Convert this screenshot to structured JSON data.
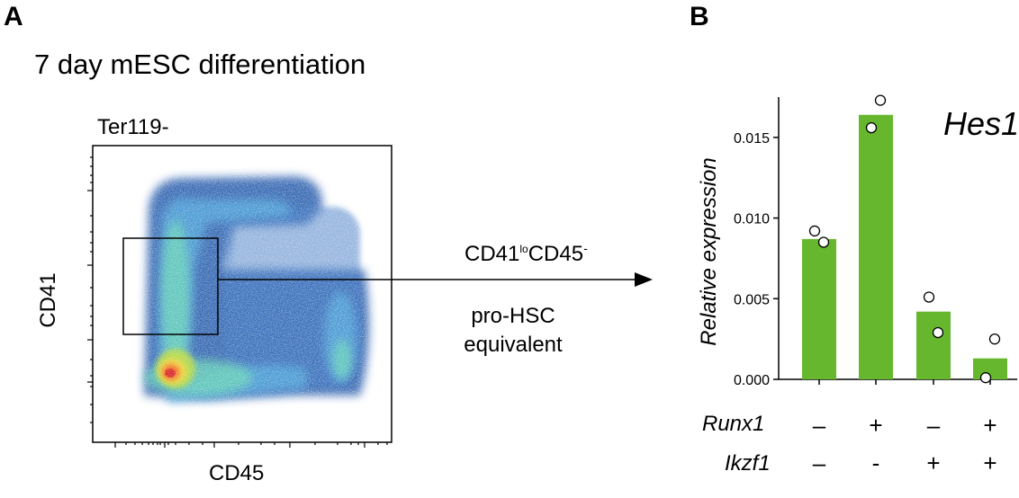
{
  "panels": {
    "a_letter": "A",
    "b_letter": "B"
  },
  "panel_a": {
    "title": "7 day mESC differentiation",
    "gate_label": "Ter119-",
    "xlabel": "CD45",
    "ylabel": "CD41",
    "population": {
      "cd41": "CD41",
      "lo": "lo",
      "cd45": "CD45",
      "minus": "-"
    },
    "description_line1": "pro-HSC",
    "description_line2": "equivalent"
  },
  "chart_data": {
    "type": "bar",
    "title": "Hes1",
    "xlabel": "",
    "ylabel": "Relative expression",
    "ylim": [
      0,
      0.0175
    ],
    "yticks": [
      "0.000",
      "0.005",
      "0.010",
      "0.015"
    ],
    "categories": [
      "Runx1- Ikzf1-",
      "Runx1+ Ikzf1-",
      "Runx1- Ikzf1+",
      "Runx1+ Ikzf1+"
    ],
    "values": [
      0.0087,
      0.0164,
      0.0042,
      0.0013
    ],
    "points": [
      [
        0.0092,
        0.0085
      ],
      [
        0.0173,
        0.0156
      ],
      [
        0.0051,
        0.0029
      ],
      [
        0.0025,
        0.0001
      ]
    ],
    "bar_color": "#66b72e",
    "conditions": {
      "runx1_label": "Runx1",
      "ikzf1_label": "Ikzf1",
      "runx1": [
        "–",
        "+",
        "–",
        "+"
      ],
      "ikzf1": [
        "–",
        "-",
        "+",
        "+"
      ]
    }
  }
}
